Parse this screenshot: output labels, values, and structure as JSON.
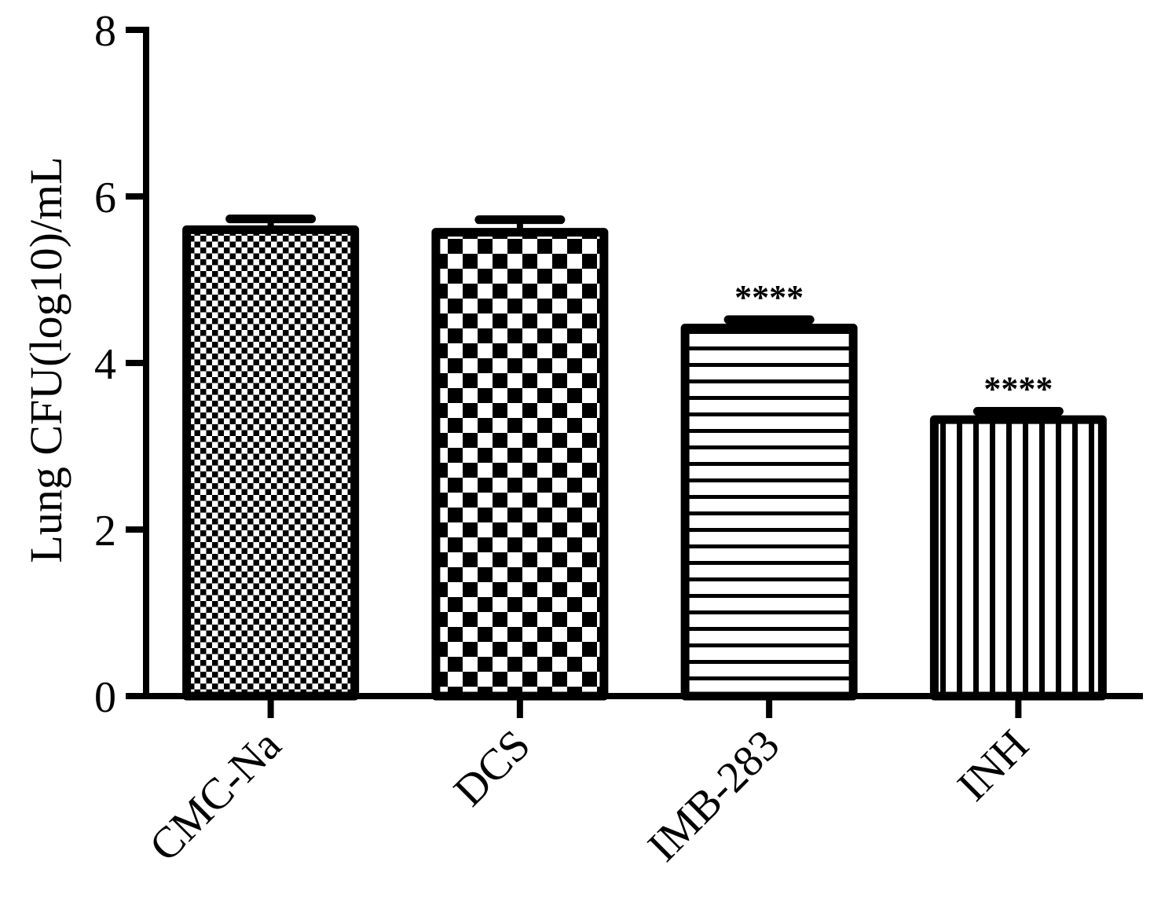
{
  "chart_data": {
    "type": "bar",
    "title": "",
    "xlabel": "",
    "ylabel": "Lung CFU(log10)/mL",
    "ylim": [
      0,
      8
    ],
    "yticks": [
      0,
      2,
      4,
      6,
      8
    ],
    "grid": false,
    "categories": [
      "CMC-Na",
      "DCS",
      "IMB-283",
      "INH"
    ],
    "values": [
      5.6,
      5.57,
      4.42,
      3.32
    ],
    "errors": [
      0.13,
      0.15,
      0.1,
      0.1
    ],
    "annotations": [
      "",
      "",
      "****",
      "****"
    ],
    "patterns": [
      "fine-checker",
      "coarse-checker",
      "horizontal-stripes",
      "vertical-stripes"
    ],
    "colors": {
      "bar_outline": "#000000",
      "pattern": "#000000",
      "background": "#ffffff"
    }
  }
}
